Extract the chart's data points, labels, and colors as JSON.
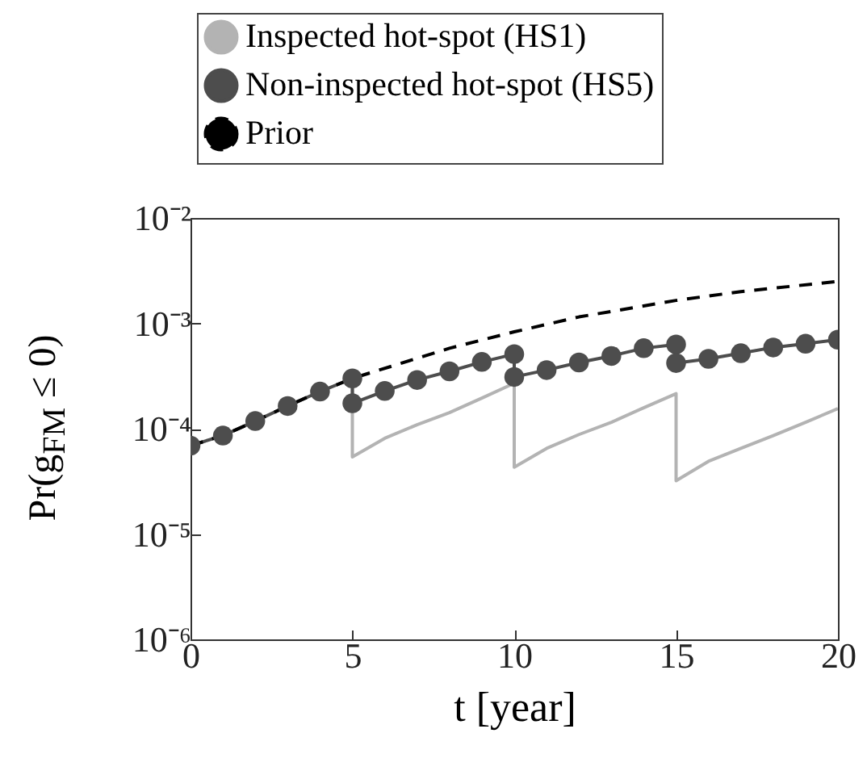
{
  "chart_data": {
    "type": "line",
    "xlabel": "t [year]",
    "ylabel": "Pr(g$_{FM}$ ≤ 0)",
    "log": "y",
    "grid": false,
    "legend": "top",
    "marker": "none",
    "xlim": [
      0,
      20
    ],
    "xticks": [
      0,
      5,
      10,
      15,
      20
    ],
    "ylim": [
      1e-06,
      0.01
    ],
    "yticks": [
      {
        "value": 1e-06,
        "label": "10⁻⁶"
      },
      {
        "value": 1e-05,
        "label": "10⁻⁵"
      },
      {
        "value": 0.0001,
        "label": "10⁻⁴"
      },
      {
        "value": 0.001,
        "label": "10⁻³"
      },
      {
        "value": 0.01,
        "label": "10⁻²"
      }
    ],
    "series": [
      {
        "name": "Inspected hot-spot (HS1)",
        "color": "#b3b3b3",
        "line_style": "solid",
        "x": [
          5,
          5,
          6,
          7,
          8,
          9,
          10,
          10,
          11,
          12,
          13,
          14,
          15,
          15,
          16,
          17,
          18,
          19,
          20
        ],
        "values": [
          0.0003,
          5.4e-05,
          8.1e-05,
          0.000109,
          0.000142,
          0.000195,
          0.00027,
          4.3e-05,
          6.5e-05,
          8.8e-05,
          0.000115,
          0.000158,
          0.000215,
          3.2e-05,
          4.9e-05,
          6.5e-05,
          8.6e-05,
          0.000115,
          0.000155
        ]
      },
      {
        "name": "Non-inspected hot-spot (HS5)",
        "color": "#4d4d4d",
        "line_style": "solid",
        "marker": "circle",
        "x": [
          0,
          1,
          2,
          3,
          4,
          5,
          5,
          6,
          7,
          8,
          9,
          10,
          10,
          11,
          12,
          13,
          14,
          15,
          15,
          16,
          17,
          18,
          19,
          20
        ],
        "values": [
          6.9e-05,
          8.6e-05,
          0.000118,
          0.000164,
          0.000225,
          0.0003,
          0.000174,
          0.000228,
          0.00029,
          0.00035,
          0.00043,
          0.00051,
          0.00031,
          0.00036,
          0.000425,
          0.00049,
          0.00058,
          0.00063,
          0.00042,
          0.00046,
          0.00052,
          0.00059,
          0.00064,
          0.0007
        ]
      },
      {
        "name": "Prior",
        "color": "#000000",
        "line_style": "dashed",
        "x": [
          0,
          1,
          2,
          3,
          4,
          5,
          8,
          10,
          12,
          15,
          17,
          20
        ],
        "values": [
          6.9e-05,
          8.6e-05,
          0.000118,
          0.000164,
          0.000225,
          0.0003,
          0.00058,
          0.00083,
          0.00115,
          0.00165,
          0.002,
          0.0025
        ]
      }
    ]
  }
}
